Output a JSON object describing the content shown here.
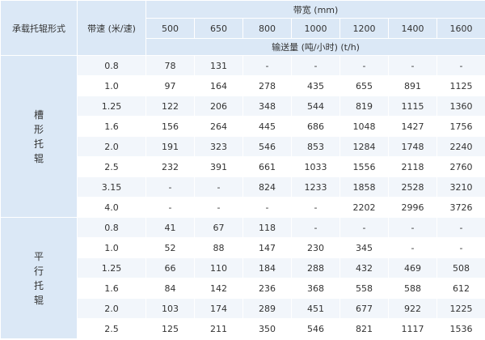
{
  "header": {
    "type_label": "承载托辊形式",
    "speed_label": "带速 (米/速)",
    "width_label": "带宽 (mm)",
    "widths": [
      500,
      650,
      800,
      1000,
      1200,
      1400,
      1600
    ],
    "capacity_label": "输送量 (吨/小时) (t/h)"
  },
  "groups": [
    {
      "label": "槽形托辊",
      "rows": [
        {
          "speed": "0.8",
          "values": [
            78,
            131,
            "-",
            "-",
            "-",
            "-",
            "-"
          ]
        },
        {
          "speed": "1.0",
          "values": [
            97,
            164,
            278,
            435,
            655,
            891,
            1125
          ]
        },
        {
          "speed": "1.25",
          "values": [
            122,
            206,
            348,
            544,
            819,
            1115,
            1360
          ]
        },
        {
          "speed": "1.6",
          "values": [
            156,
            264,
            445,
            686,
            1048,
            1427,
            1756
          ]
        },
        {
          "speed": "2.0",
          "values": [
            191,
            323,
            546,
            853,
            1284,
            1748,
            2240
          ]
        },
        {
          "speed": "2.5",
          "values": [
            232,
            391,
            661,
            1033,
            1556,
            2118,
            2760
          ]
        },
        {
          "speed": "3.15",
          "values": [
            "-",
            "-",
            824,
            1233,
            1858,
            2528,
            3210
          ]
        },
        {
          "speed": "4.0",
          "values": [
            "-",
            "-",
            "-",
            "-",
            2202,
            2996,
            3726
          ]
        }
      ]
    },
    {
      "label": "平行托辊",
      "rows": [
        {
          "speed": "0.8",
          "values": [
            41,
            67,
            118,
            "-",
            "-",
            "-",
            "-"
          ]
        },
        {
          "speed": "1.0",
          "values": [
            52,
            88,
            147,
            230,
            345,
            "-",
            "-"
          ]
        },
        {
          "speed": "1.25",
          "values": [
            66,
            110,
            184,
            288,
            432,
            469,
            508
          ]
        },
        {
          "speed": "1.6",
          "values": [
            84,
            142,
            236,
            368,
            558,
            588,
            612
          ]
        },
        {
          "speed": "2.0",
          "values": [
            103,
            174,
            289,
            451,
            677,
            922,
            1225
          ]
        },
        {
          "speed": "2.5",
          "values": [
            125,
            211,
            350,
            546,
            821,
            1117,
            1536
          ]
        }
      ]
    }
  ]
}
